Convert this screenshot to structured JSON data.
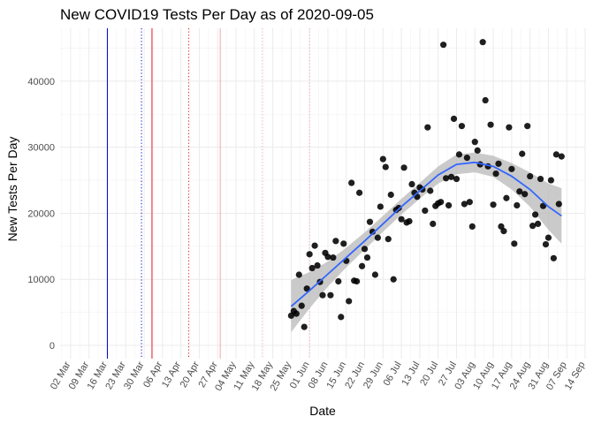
{
  "chart_data": {
    "type": "scatter",
    "title": "New COVID19 Tests Per Day as of 2020-09-05",
    "xlabel": "Date",
    "ylabel": "New Tests Per Day",
    "xlim": [
      "2020-02-27",
      "2020-09-14"
    ],
    "ylim": [
      -2000,
      48000
    ],
    "grid": true,
    "x_ticks": [
      "2020-03-02",
      "2020-03-09",
      "2020-03-16",
      "2020-03-23",
      "2020-03-30",
      "2020-04-06",
      "2020-04-13",
      "2020-04-20",
      "2020-04-27",
      "2020-05-04",
      "2020-05-11",
      "2020-05-18",
      "2020-05-25",
      "2020-06-01",
      "2020-06-08",
      "2020-06-15",
      "2020-06-22",
      "2020-06-29",
      "2020-07-06",
      "2020-07-13",
      "2020-07-20",
      "2020-07-27",
      "2020-08-03",
      "2020-08-10",
      "2020-08-17",
      "2020-08-24",
      "2020-08-31",
      "2020-09-07",
      "2020-09-14"
    ],
    "x_tick_labels": [
      "02 Mar",
      "09 Mar",
      "16 Mar",
      "23 Mar",
      "30 Mar",
      "06 Apr",
      "13 Apr",
      "20 Apr",
      "27 Apr",
      "04 May",
      "11 May",
      "18 May",
      "25 May",
      "01 Jun",
      "08 Jun",
      "15 Jun",
      "22 Jun",
      "29 Jun",
      "06 Jul",
      "13 Jul",
      "20 Jul",
      "27 Jul",
      "03 Aug",
      "10 Aug",
      "17 Aug",
      "24 Aug",
      "31 Aug",
      "07 Sep",
      "14 Sep"
    ],
    "y_ticks": [
      0,
      10000,
      20000,
      30000,
      40000
    ],
    "y_tick_labels": [
      "0",
      "10000",
      "20000",
      "30000",
      "40000"
    ],
    "vlines": [
      {
        "date": "2020-03-16",
        "color": "#0000cc",
        "dash": "solid"
      },
      {
        "date": "2020-03-29",
        "color": "#0000cc",
        "dash": "dotted"
      },
      {
        "date": "2020-04-02",
        "color": "#e41a1c",
        "dash": "solid"
      },
      {
        "date": "2020-04-16",
        "color": "#e41a1c",
        "dash": "dotted"
      },
      {
        "date": "2020-04-28",
        "color": "#f4a6a6",
        "dash": "solid"
      },
      {
        "date": "2020-05-14",
        "color": "#f4a6a6",
        "dash": "dotted"
      },
      {
        "date": "2020-06-01",
        "color": "#f4a6a6",
        "dash": "dotted"
      }
    ],
    "points": [
      [
        "2020-05-25",
        4500
      ],
      [
        "2020-05-26",
        5200
      ],
      [
        "2020-05-27",
        4800
      ],
      [
        "2020-05-28",
        10700
      ],
      [
        "2020-05-29",
        6000
      ],
      [
        "2020-05-30",
        2800
      ],
      [
        "2020-05-31",
        8600
      ],
      [
        "2020-06-01",
        13800
      ],
      [
        "2020-06-02",
        11700
      ],
      [
        "2020-06-03",
        15100
      ],
      [
        "2020-06-04",
        12100
      ],
      [
        "2020-06-05",
        9600
      ],
      [
        "2020-06-06",
        7600
      ],
      [
        "2020-06-07",
        14000
      ],
      [
        "2020-06-08",
        13400
      ],
      [
        "2020-06-09",
        7600
      ],
      [
        "2020-06-10",
        13300
      ],
      [
        "2020-06-11",
        15800
      ],
      [
        "2020-06-12",
        9700
      ],
      [
        "2020-06-13",
        4300
      ],
      [
        "2020-06-14",
        15400
      ],
      [
        "2020-06-15",
        12800
      ],
      [
        "2020-06-16",
        6700
      ],
      [
        "2020-06-17",
        24600
      ],
      [
        "2020-06-18",
        9800
      ],
      [
        "2020-06-19",
        9700
      ],
      [
        "2020-06-20",
        23100
      ],
      [
        "2020-06-21",
        12000
      ],
      [
        "2020-06-22",
        14600
      ],
      [
        "2020-06-23",
        13300
      ],
      [
        "2020-06-24",
        18700
      ],
      [
        "2020-06-25",
        17200
      ],
      [
        "2020-06-26",
        10700
      ],
      [
        "2020-06-27",
        16300
      ],
      [
        "2020-06-28",
        21000
      ],
      [
        "2020-06-29",
        28200
      ],
      [
        "2020-06-30",
        27000
      ],
      [
        "2020-07-01",
        16100
      ],
      [
        "2020-07-02",
        22800
      ],
      [
        "2020-07-03",
        10000
      ],
      [
        "2020-07-04",
        20500
      ],
      [
        "2020-07-05",
        20800
      ],
      [
        "2020-07-06",
        19100
      ],
      [
        "2020-07-07",
        26900
      ],
      [
        "2020-07-08",
        18600
      ],
      [
        "2020-07-09",
        18800
      ],
      [
        "2020-07-10",
        24400
      ],
      [
        "2020-07-11",
        23100
      ],
      [
        "2020-07-12",
        22500
      ],
      [
        "2020-07-13",
        23900
      ],
      [
        "2020-07-14",
        23600
      ],
      [
        "2020-07-15",
        20400
      ],
      [
        "2020-07-16",
        33000
      ],
      [
        "2020-07-17",
        23400
      ],
      [
        "2020-07-18",
        18400
      ],
      [
        "2020-07-19",
        21100
      ],
      [
        "2020-07-20",
        21500
      ],
      [
        "2020-07-21",
        21700
      ],
      [
        "2020-07-22",
        45500
      ],
      [
        "2020-07-23",
        25300
      ],
      [
        "2020-07-24",
        21200
      ],
      [
        "2020-07-25",
        25500
      ],
      [
        "2020-07-26",
        34300
      ],
      [
        "2020-07-27",
        25200
      ],
      [
        "2020-07-28",
        28900
      ],
      [
        "2020-07-29",
        33200
      ],
      [
        "2020-07-30",
        21400
      ],
      [
        "2020-07-31",
        28400
      ],
      [
        "2020-08-01",
        21700
      ],
      [
        "2020-08-02",
        18000
      ],
      [
        "2020-08-03",
        30800
      ],
      [
        "2020-08-04",
        29500
      ],
      [
        "2020-08-05",
        27400
      ],
      [
        "2020-08-06",
        45900
      ],
      [
        "2020-08-07",
        37100
      ],
      [
        "2020-08-08",
        27100
      ],
      [
        "2020-08-09",
        33400
      ],
      [
        "2020-08-10",
        21300
      ],
      [
        "2020-08-11",
        26000
      ],
      [
        "2020-08-12",
        27500
      ],
      [
        "2020-08-13",
        18000
      ],
      [
        "2020-08-14",
        17300
      ],
      [
        "2020-08-15",
        22300
      ],
      [
        "2020-08-16",
        33000
      ],
      [
        "2020-08-17",
        26700
      ],
      [
        "2020-08-18",
        15400
      ],
      [
        "2020-08-19",
        21200
      ],
      [
        "2020-08-20",
        23300
      ],
      [
        "2020-08-21",
        29000
      ],
      [
        "2020-08-22",
        22900
      ],
      [
        "2020-08-23",
        33200
      ],
      [
        "2020-08-24",
        25600
      ],
      [
        "2020-08-25",
        18100
      ],
      [
        "2020-08-26",
        19800
      ],
      [
        "2020-08-27",
        18400
      ],
      [
        "2020-08-28",
        25200
      ],
      [
        "2020-08-29",
        21100
      ],
      [
        "2020-08-30",
        15300
      ],
      [
        "2020-08-31",
        16300
      ],
      [
        "2020-09-01",
        25000
      ],
      [
        "2020-09-02",
        13200
      ],
      [
        "2020-09-03",
        28900
      ],
      [
        "2020-09-04",
        21400
      ],
      [
        "2020-09-05",
        28600
      ]
    ],
    "trend": {
      "color": "#3366ff",
      "band_color": "#bdbdbd",
      "x": [
        "2020-05-25",
        "2020-06-01",
        "2020-06-08",
        "2020-06-15",
        "2020-06-22",
        "2020-06-29",
        "2020-07-06",
        "2020-07-13",
        "2020-07-20",
        "2020-07-27",
        "2020-08-03",
        "2020-08-10",
        "2020-08-17",
        "2020-08-24",
        "2020-08-31",
        "2020-09-05"
      ],
      "y": [
        5900,
        8300,
        10800,
        13300,
        15800,
        18400,
        21000,
        23400,
        25800,
        27400,
        27700,
        27100,
        25600,
        23600,
        21000,
        19600
      ],
      "lower": [
        2000,
        5600,
        8900,
        11800,
        14500,
        17200,
        19800,
        22200,
        24500,
        25900,
        26200,
        25500,
        23600,
        21000,
        17500,
        15400
      ],
      "upper": [
        9900,
        11100,
        12700,
        14800,
        17100,
        19600,
        22200,
        24600,
        27100,
        28900,
        29200,
        28700,
        27600,
        26200,
        24500,
        23800
      ]
    }
  }
}
